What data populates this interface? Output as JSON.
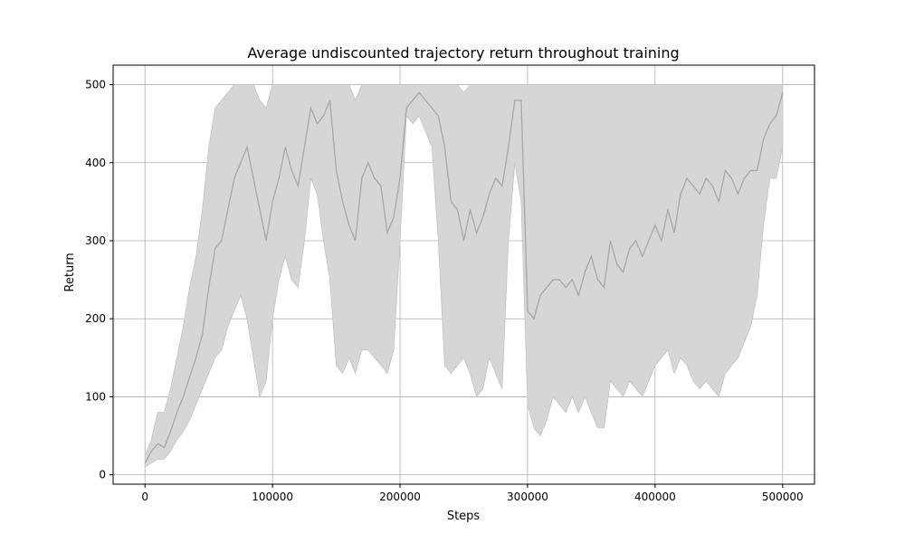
{
  "chart_data": {
    "type": "line",
    "title": "Average undiscounted trajectory return throughout training",
    "xlabel": "Steps",
    "ylabel": "Return",
    "xlim": [
      -25000,
      525000
    ],
    "ylim": [
      -12,
      525
    ],
    "xticks": [
      0,
      100000,
      200000,
      300000,
      400000,
      500000
    ],
    "yticks": [
      0,
      100,
      200,
      300,
      400,
      500
    ],
    "grid": true,
    "legend": "none",
    "colors": {
      "line": "#aaaaaa",
      "band": "#d6d6d6",
      "band_edge": "#c4c4c4",
      "grid": "#b0b0b0"
    },
    "series": [
      {
        "x": [
          0,
          5000,
          10000,
          15000,
          20000,
          25000,
          30000,
          35000,
          40000,
          45000,
          50000,
          55000,
          60000,
          65000,
          70000,
          75000,
          80000,
          85000,
          90000,
          95000,
          100000,
          105000,
          110000,
          115000,
          120000,
          125000,
          130000,
          135000,
          140000,
          145000,
          150000,
          155000,
          160000,
          165000,
          170000,
          175000,
          180000,
          185000,
          190000,
          195000,
          200000,
          205000,
          210000,
          215000,
          220000,
          225000,
          230000,
          235000,
          240000,
          245000,
          250000,
          255000,
          260000,
          265000,
          270000,
          275000,
          280000,
          285000,
          290000,
          295000,
          300000,
          305000,
          310000,
          315000,
          320000,
          325000,
          330000,
          335000,
          340000,
          345000,
          350000,
          355000,
          360000,
          365000,
          370000,
          375000,
          380000,
          385000,
          390000,
          395000,
          400000,
          405000,
          410000,
          415000,
          420000,
          425000,
          430000,
          435000,
          440000,
          445000,
          450000,
          455000,
          460000,
          465000,
          470000,
          475000,
          480000,
          485000,
          490000,
          495000,
          500000
        ],
        "mean": [
          15,
          30,
          40,
          35,
          55,
          80,
          100,
          125,
          150,
          180,
          240,
          290,
          300,
          340,
          380,
          400,
          420,
          380,
          340,
          300,
          350,
          380,
          420,
          390,
          370,
          420,
          470,
          450,
          460,
          480,
          390,
          350,
          320,
          300,
          380,
          400,
          380,
          370,
          310,
          330,
          380,
          470,
          480,
          490,
          480,
          470,
          460,
          420,
          350,
          340,
          300,
          340,
          310,
          330,
          360,
          380,
          370,
          420,
          480,
          480,
          210,
          200,
          230,
          240,
          250,
          250,
          240,
          250,
          230,
          260,
          280,
          250,
          240,
          300,
          270,
          260,
          290,
          300,
          280,
          300,
          320,
          300,
          340,
          310,
          360,
          380,
          370,
          360,
          380,
          370,
          350,
          390,
          380,
          360,
          380,
          390,
          390,
          430,
          450,
          460,
          490
        ],
        "upper": [
          25,
          45,
          80,
          80,
          110,
          150,
          190,
          240,
          280,
          340,
          420,
          470,
          480,
          490,
          500,
          500,
          500,
          500,
          480,
          470,
          500,
          500,
          500,
          500,
          500,
          500,
          500,
          500,
          500,
          500,
          500,
          500,
          500,
          480,
          500,
          500,
          500,
          500,
          500,
          500,
          500,
          500,
          500,
          500,
          500,
          500,
          500,
          500,
          500,
          500,
          490,
          500,
          500,
          500,
          500,
          500,
          500,
          500,
          500,
          500,
          500,
          500,
          500,
          500,
          500,
          500,
          500,
          500,
          500,
          500,
          500,
          500,
          500,
          500,
          500,
          500,
          500,
          500,
          500,
          500,
          500,
          500,
          500,
          500,
          500,
          500,
          500,
          500,
          500,
          500,
          500,
          500,
          500,
          500,
          500,
          500,
          500,
          500,
          500,
          500,
          500
        ],
        "lower": [
          10,
          15,
          20,
          20,
          30,
          45,
          55,
          70,
          90,
          110,
          130,
          150,
          160,
          190,
          210,
          230,
          200,
          150,
          100,
          120,
          200,
          250,
          280,
          250,
          240,
          300,
          380,
          360,
          300,
          250,
          140,
          130,
          150,
          130,
          160,
          160,
          150,
          140,
          130,
          160,
          300,
          460,
          450,
          460,
          440,
          420,
          300,
          140,
          130,
          140,
          150,
          130,
          100,
          110,
          150,
          130,
          110,
          300,
          400,
          350,
          90,
          60,
          50,
          70,
          100,
          90,
          80,
          100,
          80,
          100,
          80,
          60,
          60,
          120,
          110,
          100,
          120,
          110,
          100,
          120,
          140,
          150,
          160,
          130,
          150,
          140,
          120,
          110,
          120,
          110,
          100,
          130,
          140,
          150,
          170,
          190,
          230,
          320,
          380,
          380,
          420
        ]
      }
    ]
  }
}
